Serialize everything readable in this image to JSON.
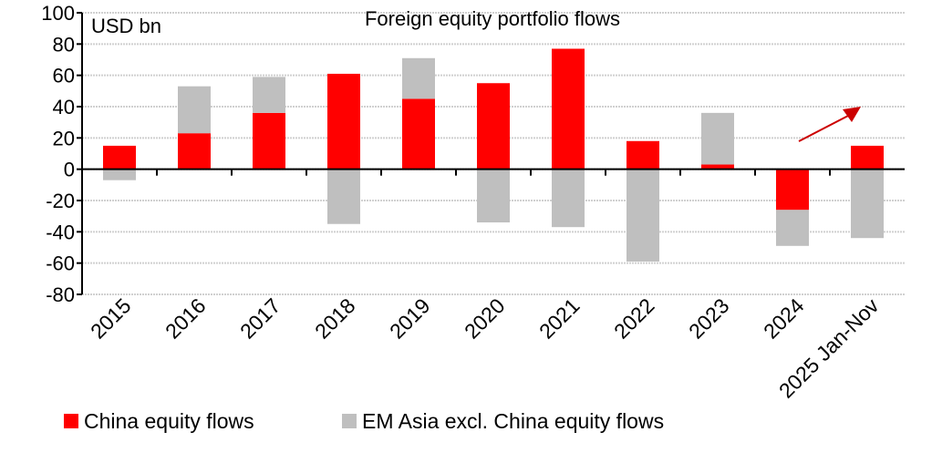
{
  "chart_data": {
    "type": "bar",
    "stacked": true,
    "title": "Foreign equity portfolio flows",
    "ylabel": "USD bn",
    "xlabel": "",
    "ylim": [
      -80,
      100
    ],
    "yticks": [
      -80,
      -60,
      -40,
      -20,
      0,
      20,
      40,
      60,
      80,
      100
    ],
    "grid": true,
    "categories": [
      "2015",
      "2016",
      "2017",
      "2018",
      "2019",
      "2020",
      "2021",
      "2022",
      "2023",
      "2024",
      "2025 Jan-Nov"
    ],
    "series": [
      {
        "name": "China equity flows",
        "color": "#ff0000",
        "values": [
          15,
          23,
          36,
          61,
          45,
          55,
          77,
          18,
          3,
          -26,
          15
        ]
      },
      {
        "name": "EM Asia excl. China equity flows",
        "color": "#bfbfbf",
        "values": [
          -7,
          30,
          23,
          -35,
          26,
          -34,
          -37,
          -59,
          33,
          -23,
          -44
        ]
      }
    ],
    "legend": "bottom",
    "annotations": [
      {
        "type": "arrow",
        "color": "#cc0000",
        "near": "2025 Jan-Nov",
        "direction": "up-right"
      }
    ]
  }
}
